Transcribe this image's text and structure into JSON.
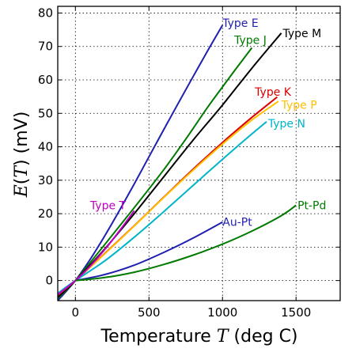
{
  "chart_data": {
    "type": "line",
    "xlabel_prefix": "Temperature ",
    "xlabel_var": "T",
    "xlabel_suffix": " (deg C)",
    "ylabel_func": "E",
    "ylabel_var": "T",
    "ylabel_suffix": " (mV)",
    "xlim": [
      -120,
      1800
    ],
    "ylim": [
      -6,
      82
    ],
    "x_ticks": [
      0,
      500,
      1000,
      1500
    ],
    "y_ticks": [
      0,
      10,
      20,
      30,
      40,
      50,
      60,
      70,
      80
    ],
    "grid": true,
    "series": [
      {
        "name": "Type E",
        "color": "#1f1fb0",
        "label_x": 1000,
        "label_y": 77,
        "points": [
          [
            -120,
            -6
          ],
          [
            0,
            0
          ],
          [
            100,
            6.3
          ],
          [
            200,
            13.4
          ],
          [
            300,
            21
          ],
          [
            400,
            28.9
          ],
          [
            500,
            37
          ],
          [
            600,
            45.1
          ],
          [
            700,
            53.1
          ],
          [
            800,
            61
          ],
          [
            900,
            68.8
          ],
          [
            1000,
            76.4
          ]
        ]
      },
      {
        "name": "Type J",
        "color": "#007a00",
        "label_x": 1080,
        "label_y": 72,
        "points": [
          [
            -120,
            -5.4
          ],
          [
            0,
            0
          ],
          [
            200,
            10.8
          ],
          [
            400,
            21.8
          ],
          [
            600,
            33.1
          ],
          [
            760,
            42.9
          ],
          [
            900,
            51.9
          ],
          [
            1000,
            57.9
          ],
          [
            1100,
            63.8
          ],
          [
            1200,
            69.6
          ]
        ]
      },
      {
        "name": "Type M",
        "color": "#000000",
        "label_x": 1410,
        "label_y": 74,
        "points": [
          [
            -120,
            -5
          ],
          [
            0,
            0
          ],
          [
            200,
            9.5
          ],
          [
            400,
            20
          ],
          [
            600,
            31
          ],
          [
            800,
            42
          ],
          [
            1000,
            52.5
          ],
          [
            1200,
            63.5
          ],
          [
            1400,
            74
          ]
        ]
      },
      {
        "name": "Type K",
        "color": "#dd0000",
        "label_x": 1220,
        "label_y": 56.5,
        "points": [
          [
            -120,
            -4.4
          ],
          [
            0,
            0
          ],
          [
            200,
            8.1
          ],
          [
            400,
            16.4
          ],
          [
            600,
            24.9
          ],
          [
            800,
            33.3
          ],
          [
            1000,
            41.3
          ],
          [
            1200,
            48.8
          ],
          [
            1372,
            54.9
          ]
        ]
      },
      {
        "name": "Type P",
        "color": "#ffc000",
        "label_x": 1400,
        "label_y": 52.5,
        "points": [
          [
            -120,
            -4.2
          ],
          [
            0,
            0
          ],
          [
            200,
            8
          ],
          [
            400,
            16.3
          ],
          [
            600,
            24.8
          ],
          [
            800,
            33
          ],
          [
            1000,
            40.8
          ],
          [
            1200,
            48
          ],
          [
            1380,
            53.6
          ]
        ]
      },
      {
        "name": "Type N",
        "color": "#00b5c8",
        "label_x": 1310,
        "label_y": 47,
        "points": [
          [
            -120,
            -3.8
          ],
          [
            0,
            0
          ],
          [
            200,
            5.9
          ],
          [
            400,
            12.97
          ],
          [
            600,
            20.6
          ],
          [
            800,
            28.45
          ],
          [
            1000,
            36.26
          ],
          [
            1200,
            43.85
          ],
          [
            1300,
            47.5
          ]
        ]
      },
      {
        "name": "Type T",
        "color": "#c000c0",
        "label_x": 100,
        "label_y": 22.5,
        "points": [
          [
            -120,
            -4.2
          ],
          [
            0,
            0
          ],
          [
            100,
            4.3
          ],
          [
            200,
            9.3
          ],
          [
            300,
            14.9
          ],
          [
            400,
            20.9
          ]
        ]
      },
      {
        "name": "Au-Pt",
        "color": "#1f1fb0",
        "label_x": 1000,
        "label_y": 17.5,
        "points": [
          [
            0,
            0
          ],
          [
            200,
            1.8
          ],
          [
            400,
            4.6
          ],
          [
            600,
            8.4
          ],
          [
            800,
            12.7
          ],
          [
            1000,
            17.5
          ]
        ]
      },
      {
        "name": "Pt-Pd",
        "color": "#007a00",
        "label_x": 1510,
        "label_y": 22.5,
        "points": [
          [
            0,
            0
          ],
          [
            200,
            0.9
          ],
          [
            400,
            2.5
          ],
          [
            600,
            4.8
          ],
          [
            800,
            7.6
          ],
          [
            1000,
            10.9
          ],
          [
            1200,
            14.8
          ],
          [
            1400,
            19.4
          ],
          [
            1500,
            22.5
          ]
        ]
      }
    ]
  }
}
